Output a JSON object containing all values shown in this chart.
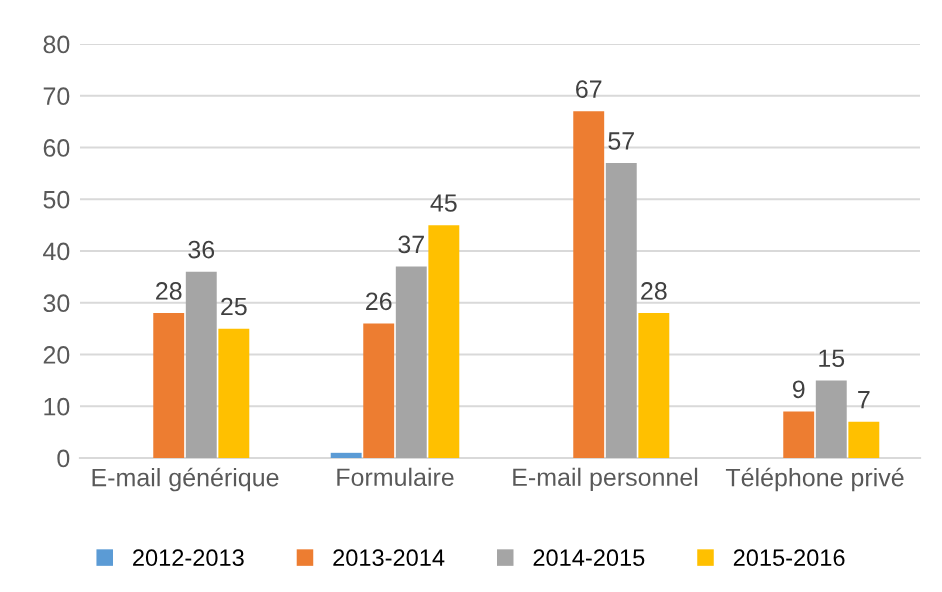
{
  "chart_data": {
    "type": "bar",
    "categories": [
      "E-mail générique",
      "Formulaire",
      "E-mail personnel",
      "Téléphone privé"
    ],
    "series": [
      {
        "name": "2012-2013",
        "color": "#5b9bd5",
        "values": [
          null,
          1,
          null,
          null
        ],
        "value_labels": [
          null,
          null,
          null,
          null
        ]
      },
      {
        "name": "2013-2014",
        "color": "#ed7d31",
        "values": [
          28,
          26,
          67,
          9
        ],
        "value_labels": [
          "28",
          "26",
          "67",
          "9"
        ]
      },
      {
        "name": "2014-2015",
        "color": "#a5a5a5",
        "values": [
          36,
          37,
          57,
          15
        ],
        "value_labels": [
          "36",
          "37",
          "57",
          "15"
        ]
      },
      {
        "name": "2015-2016",
        "color": "#ffc000",
        "values": [
          25,
          45,
          28,
          7
        ],
        "value_labels": [
          "25",
          "45",
          "28",
          "7"
        ]
      }
    ],
    "ylim": [
      0,
      80
    ],
    "yticks": [
      0,
      10,
      20,
      30,
      40,
      50,
      60,
      70,
      80
    ],
    "grid": "y",
    "legend": "bottom"
  }
}
